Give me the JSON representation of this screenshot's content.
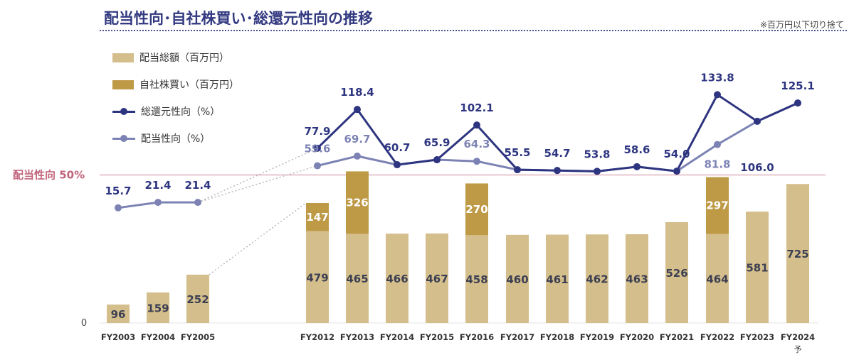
{
  "title": "配当性向･自社株買い･総還元性向の推移",
  "note": "※百万円以下切り捨て",
  "legend": [
    {
      "label": "配当総額（百万円）",
      "kind": "bar",
      "color": "#d4bf8c"
    },
    {
      "label": "自社株買い（百万円）",
      "kind": "bar",
      "color": "#be9a47"
    },
    {
      "label": "総還元性向（%）",
      "kind": "line",
      "color": "#2e3580"
    },
    {
      "label": "配当性向（%）",
      "kind": "line",
      "color": "#7c83b4"
    }
  ],
  "reference_line": {
    "label": "配当性向 50%",
    "value": 50,
    "color": "#c1647b"
  },
  "chart_data": {
    "type": "bar+line",
    "categories": [
      "FY2003",
      "FY2004",
      "FY2005",
      "FY2012",
      "FY2013",
      "FY2014",
      "FY2015",
      "FY2016",
      "FY2017",
      "FY2018",
      "FY2019",
      "FY2020",
      "FY2021",
      "FY2022",
      "FY2023",
      "FY2024"
    ],
    "category_notes": {
      "FY2024": "予"
    },
    "y_axis_zero_label": "0",
    "series": [
      {
        "name": "配当総額（百万円）",
        "type": "bar",
        "stack": "amount",
        "values": [
          96,
          159,
          252,
          479,
          465,
          466,
          467,
          458,
          460,
          461,
          462,
          463,
          526,
          464,
          581,
          725
        ]
      },
      {
        "name": "自社株買い（百万円）",
        "type": "bar",
        "stack": "amount",
        "values": [
          null,
          null,
          null,
          147,
          326,
          null,
          null,
          270,
          null,
          null,
          null,
          null,
          null,
          297,
          null,
          null
        ]
      },
      {
        "name": "総還元性向（%）",
        "type": "line",
        "values": [
          null,
          null,
          null,
          77.9,
          118.4,
          60.7,
          65.9,
          102.1,
          55.5,
          54.7,
          53.8,
          58.6,
          54.0,
          133.8,
          106.0,
          125.1
        ]
      },
      {
        "name": "配当性向（%）",
        "type": "line",
        "values": [
          15.7,
          21.4,
          21.4,
          59.6,
          69.7,
          null,
          null,
          64.3,
          null,
          null,
          null,
          null,
          null,
          81.8,
          null,
          null
        ]
      }
    ]
  }
}
